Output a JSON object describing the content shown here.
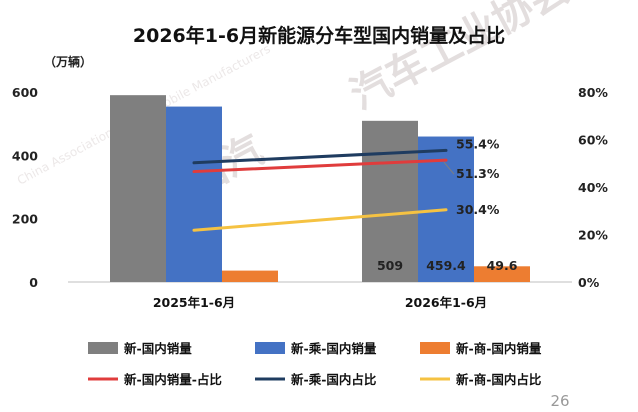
{
  "chart_data": {
    "type": "bar",
    "title": "2026年1-6月新能源分车型国内销量及占比",
    "y_left_unit": "（万辆）",
    "y_left_ticks": [
      "0",
      "200",
      "400",
      "600"
    ],
    "y_left_lim": [
      0,
      600
    ],
    "y_right_ticks": [
      "0%",
      "20%",
      "40%",
      "60%",
      "80%"
    ],
    "y_right_lim": [
      0,
      80
    ],
    "categories": [
      "2025年1-6月",
      "2026年1-6月"
    ],
    "bar_series": [
      {
        "name": "新-国内销量",
        "color": "#7f7f7f",
        "values": [
          590,
          509
        ],
        "labels": [
          "",
          "509"
        ]
      },
      {
        "name": "新-乘-国内销量",
        "color": "#4472c4",
        "values": [
          554,
          459.4
        ],
        "labels": [
          "",
          "459.4"
        ]
      },
      {
        "name": "新-商-国内销量",
        "color": "#ed7d31",
        "values": [
          36,
          49.6
        ],
        "labels": [
          "",
          "49.6"
        ]
      }
    ],
    "line_series": [
      {
        "name": "新-国内销量-占比",
        "color": "#e03c3c",
        "values": [
          46.5,
          51.3
        ],
        "labels": [
          "",
          "51.3%"
        ]
      },
      {
        "name": "新-乘-国内占比",
        "color": "#1f3c60",
        "values": [
          50.2,
          55.4
        ],
        "labels": [
          "",
          "55.4%"
        ]
      },
      {
        "name": "新-商-国内占比",
        "color": "#f5c242",
        "values": [
          21.8,
          30.4
        ],
        "labels": [
          "",
          "30.4%"
        ]
      }
    ],
    "legend_position": "bottom",
    "grid": false
  },
  "page_number": "26",
  "watermark": {
    "main": "汽车工业协会",
    "main_cn": "中国汽",
    "english": "China Association of Automobile Manufacturers"
  }
}
